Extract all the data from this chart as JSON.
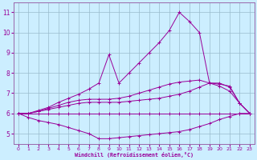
{
  "xlabel": "Windchill (Refroidissement éolien,°C)",
  "bg_color": "#cceeff",
  "line_color": "#990099",
  "grid_color": "#99bbcc",
  "spine_color": "#9966aa",
  "xlim": [
    -0.5,
    23.5
  ],
  "ylim": [
    4.5,
    11.5
  ],
  "xticks": [
    0,
    1,
    2,
    3,
    4,
    5,
    6,
    7,
    8,
    9,
    10,
    11,
    12,
    13,
    14,
    15,
    16,
    17,
    18,
    19,
    20,
    21,
    22,
    23
  ],
  "yticks": [
    5,
    6,
    7,
    8,
    9,
    10,
    11
  ],
  "curve_flat": [
    6.0,
    6.0,
    6.0,
    6.0,
    6.0,
    6.0,
    6.0,
    6.0,
    6.0,
    6.0,
    6.0,
    6.0,
    6.0,
    6.0,
    6.0,
    6.0,
    6.0,
    6.0,
    6.0,
    6.0,
    6.0,
    6.0,
    6.0,
    6.0
  ],
  "curve_low": [
    6.0,
    5.8,
    5.65,
    5.55,
    5.45,
    5.3,
    5.15,
    5.0,
    4.75,
    4.75,
    4.8,
    4.85,
    4.9,
    4.95,
    5.0,
    5.05,
    5.1,
    5.2,
    5.35,
    5.5,
    5.7,
    5.85,
    6.0,
    6.0
  ],
  "curve_mid": [
    6.0,
    6.0,
    6.1,
    6.2,
    6.3,
    6.4,
    6.5,
    6.55,
    6.55,
    6.55,
    6.55,
    6.6,
    6.65,
    6.7,
    6.75,
    6.85,
    6.95,
    7.1,
    7.3,
    7.5,
    7.5,
    7.3,
    6.5,
    6.0
  ],
  "curve_high_mid": [
    6.0,
    6.0,
    6.1,
    6.25,
    6.4,
    6.55,
    6.65,
    6.7,
    6.7,
    6.7,
    6.75,
    6.85,
    7.0,
    7.15,
    7.3,
    7.45,
    7.55,
    7.6,
    7.65,
    7.5,
    7.35,
    7.1,
    6.5,
    6.0
  ],
  "curve_high": [
    6.0,
    6.0,
    6.15,
    6.3,
    6.55,
    6.75,
    6.95,
    7.2,
    7.5,
    8.9,
    7.5,
    8.0,
    8.5,
    9.0,
    9.5,
    10.1,
    11.0,
    10.55,
    10.0,
    7.5,
    7.45,
    7.35,
    6.5,
    6.0
  ]
}
